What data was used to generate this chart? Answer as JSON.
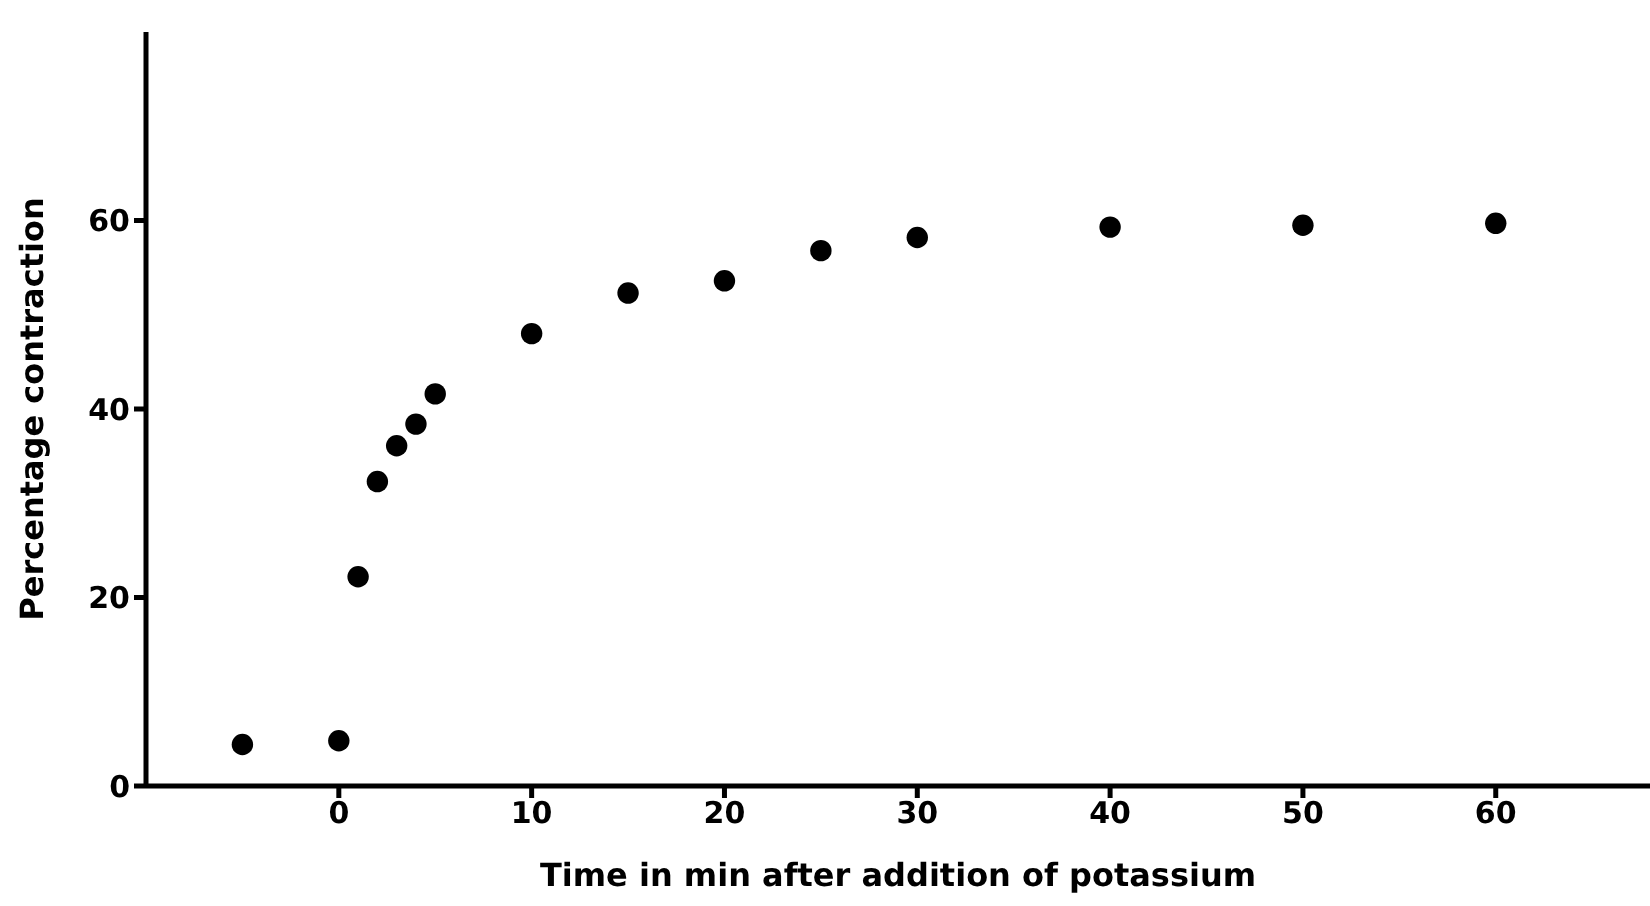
{
  "chart_data": {
    "type": "scatter",
    "xlabel": "Time in min after addition of potassium",
    "ylabel": "Percentage contraction",
    "x": [
      -5,
      0,
      1,
      2,
      3,
      4,
      5,
      10,
      15,
      20,
      25,
      30,
      40,
      50,
      60
    ],
    "values": [
      4.4,
      4.8,
      22.2,
      32.3,
      36.1,
      38.4,
      41.6,
      48.0,
      52.3,
      53.6,
      56.8,
      58.2,
      59.3,
      59.5,
      59.7
    ],
    "color": "#000000",
    "marker": "circle",
    "grid": false,
    "legend": false,
    "xlim": [
      -10,
      68
    ],
    "xticks": [
      0,
      10,
      20,
      30,
      40,
      50,
      60
    ],
    "ylim": [
      0,
      80
    ],
    "yticks": [
      0,
      20,
      40,
      60
    ]
  }
}
